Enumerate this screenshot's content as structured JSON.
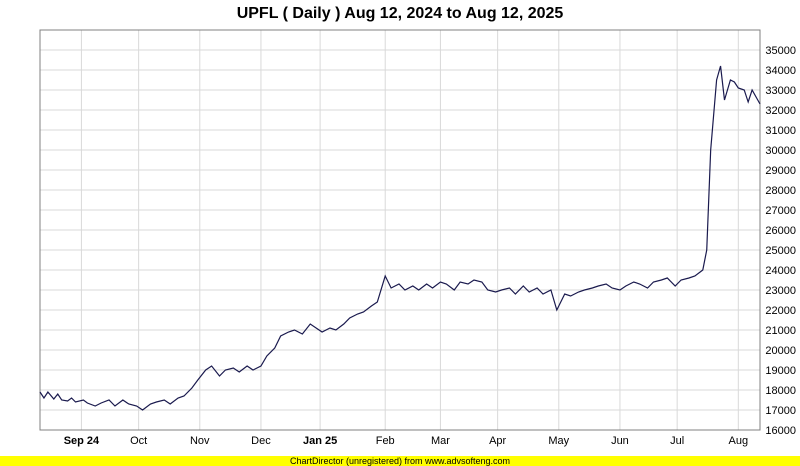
{
  "colors": {
    "line": "#1a1a4e",
    "grid": "#d9d9d9",
    "plot_border": "#808080",
    "footer_bg": "#ffff00"
  },
  "footer": {
    "text": "ChartDirector (unregistered) from www.advsofteng.com"
  },
  "chart_data": {
    "type": "line",
    "title": "UPFL ( Daily ) Aug 12, 2024 to Aug 12, 2025",
    "xlabel": "",
    "ylabel": "",
    "ylim": [
      16000,
      36000
    ],
    "xlim": [
      "2024-08-12",
      "2025-08-12"
    ],
    "grid": true,
    "y_axis_side": "right",
    "y_ticks": [
      16000,
      17000,
      18000,
      19000,
      20000,
      21000,
      22000,
      23000,
      24000,
      25000,
      26000,
      27000,
      28000,
      29000,
      30000,
      31000,
      32000,
      33000,
      34000,
      35000
    ],
    "x_ticks": [
      {
        "label": "Sep 24",
        "date": "2024-09-02",
        "bold": true
      },
      {
        "label": "Oct",
        "date": "2024-10-01",
        "bold": false
      },
      {
        "label": "Nov",
        "date": "2024-11-01",
        "bold": false
      },
      {
        "label": "Dec",
        "date": "2024-12-02",
        "bold": false
      },
      {
        "label": "Jan 25",
        "date": "2025-01-01",
        "bold": true
      },
      {
        "label": "Feb",
        "date": "2025-02-03",
        "bold": false
      },
      {
        "label": "Mar",
        "date": "2025-03-03",
        "bold": false
      },
      {
        "label": "Apr",
        "date": "2025-04-01",
        "bold": false
      },
      {
        "label": "May",
        "date": "2025-05-02",
        "bold": false
      },
      {
        "label": "Jun",
        "date": "2025-06-02",
        "bold": false
      },
      {
        "label": "Jul",
        "date": "2025-07-01",
        "bold": false
      },
      {
        "label": "Aug",
        "date": "2025-08-01",
        "bold": false
      }
    ],
    "series": [
      {
        "x": [
          "2024-08-12",
          "2024-08-14",
          "2024-08-16",
          "2024-08-19",
          "2024-08-21",
          "2024-08-23",
          "2024-08-26",
          "2024-08-28",
          "2024-08-30",
          "2024-09-03",
          "2024-09-05",
          "2024-09-09",
          "2024-09-12",
          "2024-09-16",
          "2024-09-19",
          "2024-09-23",
          "2024-09-26",
          "2024-09-30",
          "2024-10-03",
          "2024-10-07",
          "2024-10-10",
          "2024-10-14",
          "2024-10-17",
          "2024-10-21",
          "2024-10-24",
          "2024-10-28",
          "2024-10-31",
          "2024-11-04",
          "2024-11-07",
          "2024-11-11",
          "2024-11-14",
          "2024-11-18",
          "2024-11-21",
          "2024-11-25",
          "2024-11-28",
          "2024-12-02",
          "2024-12-05",
          "2024-12-09",
          "2024-12-12",
          "2024-12-16",
          "2024-12-19",
          "2024-12-23",
          "2024-12-27",
          "2025-01-02",
          "2025-01-06",
          "2025-01-09",
          "2025-01-13",
          "2025-01-16",
          "2025-01-20",
          "2025-01-23",
          "2025-01-27",
          "2025-01-30",
          "2025-02-03",
          "2025-02-06",
          "2025-02-10",
          "2025-02-13",
          "2025-02-17",
          "2025-02-20",
          "2025-02-24",
          "2025-02-27",
          "2025-03-03",
          "2025-03-06",
          "2025-03-10",
          "2025-03-13",
          "2025-03-17",
          "2025-03-20",
          "2025-03-24",
          "2025-03-27",
          "2025-03-31",
          "2025-04-03",
          "2025-04-07",
          "2025-04-10",
          "2025-04-14",
          "2025-04-17",
          "2025-04-21",
          "2025-04-24",
          "2025-04-28",
          "2025-05-01",
          "2025-05-05",
          "2025-05-08",
          "2025-05-12",
          "2025-05-15",
          "2025-05-19",
          "2025-05-22",
          "2025-05-26",
          "2025-05-29",
          "2025-06-02",
          "2025-06-05",
          "2025-06-09",
          "2025-06-12",
          "2025-06-16",
          "2025-06-19",
          "2025-06-23",
          "2025-06-26",
          "2025-06-30",
          "2025-07-03",
          "2025-07-07",
          "2025-07-10",
          "2025-07-14",
          "2025-07-16",
          "2025-07-18",
          "2025-07-21",
          "2025-07-23",
          "2025-07-25",
          "2025-07-28",
          "2025-07-30",
          "2025-08-01",
          "2025-08-04",
          "2025-08-06",
          "2025-08-08",
          "2025-08-12"
        ],
        "values": [
          17900,
          17600,
          17900,
          17550,
          17800,
          17500,
          17450,
          17600,
          17400,
          17500,
          17350,
          17200,
          17350,
          17500,
          17200,
          17500,
          17300,
          17200,
          17000,
          17300,
          17400,
          17500,
          17300,
          17600,
          17700,
          18100,
          18500,
          19000,
          19200,
          18700,
          19000,
          19100,
          18900,
          19200,
          19000,
          19200,
          19700,
          20100,
          20700,
          20900,
          21000,
          20800,
          21300,
          20900,
          21100,
          21000,
          21300,
          21600,
          21800,
          21900,
          22200,
          22400,
          23700,
          23100,
          23300,
          23000,
          23200,
          23000,
          23300,
          23100,
          23400,
          23300,
          23000,
          23400,
          23300,
          23500,
          23400,
          23000,
          22900,
          23000,
          23100,
          22800,
          23200,
          22900,
          23100,
          22800,
          23000,
          22000,
          22800,
          22700,
          22900,
          23000,
          23100,
          23200,
          23300,
          23100,
          23000,
          23200,
          23400,
          23300,
          23100,
          23400,
          23500,
          23600,
          23200,
          23500,
          23600,
          23700,
          24000,
          25000,
          30000,
          33500,
          34200,
          32500,
          33500,
          33400,
          33100,
          33000,
          32400,
          33000,
          32300
        ]
      }
    ]
  }
}
